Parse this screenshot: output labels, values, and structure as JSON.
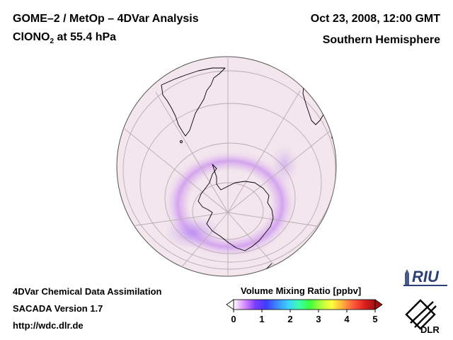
{
  "header": {
    "title_line1": "GOME–2 / MetOp – 4DVar Analysis",
    "species_prefix": "ClONO",
    "species_subscript": "2",
    "species_suffix": " at 55.4 hPa",
    "date": "Oct 23, 2008, 12:00 GMT",
    "hemisphere": "Southern Hemisphere"
  },
  "footer": {
    "line1": "4DVar Chemical Data Assimilation",
    "line2": "SACADA Version 1.7",
    "line3": "http://wdc.dlr.de"
  },
  "colorbar": {
    "title": "Volume Mixing Ratio [ppbv]",
    "ticks": [
      "0",
      "1",
      "2",
      "3",
      "4",
      "5"
    ],
    "range": [
      0,
      5
    ],
    "colors": [
      "#ffffff",
      "#d98cff",
      "#7b3cff",
      "#3f3cff",
      "#3c8cff",
      "#3cd0ff",
      "#3cffb0",
      "#3cff3c",
      "#b0ff3c",
      "#ffff3c",
      "#ffb03c",
      "#ff5a3c",
      "#e02020",
      "#a01010"
    ]
  },
  "logos": {
    "riu": "RIU",
    "dlr": "DLR"
  },
  "map": {
    "background_color": "#f3e6ec",
    "land_outline_color": "#000000"
  }
}
